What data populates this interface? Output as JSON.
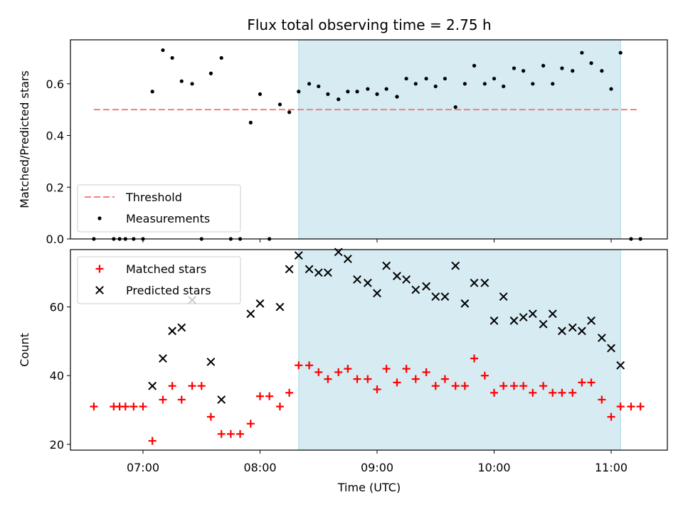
{
  "chart_data": {
    "title": "Flux total observing time = 2.75 h",
    "xlabel": "Time (UTC)",
    "xlim": [
      6.38,
      11.48
    ],
    "x_ticks": [
      {
        "v": 7,
        "label": "07:00"
      },
      {
        "v": 8,
        "label": "08:00"
      },
      {
        "v": 9,
        "label": "09:00"
      },
      {
        "v": 10,
        "label": "10:00"
      },
      {
        "v": 11,
        "label": "11:00"
      }
    ],
    "highlight_span": {
      "x0": 8.33,
      "x1": 11.08,
      "color": "#add8e6"
    },
    "panels": [
      {
        "type": "scatter",
        "ylabel": "Matched/Predicted stars",
        "ylim": [
          0,
          0.77
        ],
        "y_ticks": [
          {
            "v": 0.0,
            "label": "0.0"
          },
          {
            "v": 0.2,
            "label": "0.2"
          },
          {
            "v": 0.4,
            "label": "0.4"
          },
          {
            "v": 0.6,
            "label": "0.6"
          }
        ],
        "legend": {
          "position": "lower-left",
          "entries": [
            "Threshold",
            "Measurements"
          ]
        },
        "threshold": {
          "name": "Threshold",
          "y": 0.5,
          "x0": 6.58,
          "x1": 11.22,
          "color": "#f08080"
        },
        "series": [
          {
            "name": "Measurements",
            "marker": "dot",
            "color": "#000000",
            "x": [
              6.58,
              6.75,
              6.8,
              6.85,
              6.92,
              7.0,
              7.08,
              7.17,
              7.25,
              7.33,
              7.42,
              7.5,
              7.58,
              7.67,
              7.75,
              7.83,
              7.92,
              8.0,
              8.08,
              8.17,
              8.25,
              8.33,
              8.42,
              8.5,
              8.58,
              8.67,
              8.75,
              8.83,
              8.92,
              9.0,
              9.08,
              9.17,
              9.25,
              9.33,
              9.42,
              9.5,
              9.58,
              9.67,
              9.75,
              9.83,
              9.92,
              10.0,
              10.08,
              10.17,
              10.25,
              10.33,
              10.42,
              10.5,
              10.58,
              10.67,
              10.75,
              10.83,
              10.92,
              11.0,
              11.08,
              11.17,
              11.25
            ],
            "y": [
              0.0,
              0.0,
              0.0,
              0.0,
              0.0,
              0.0,
              0.57,
              0.73,
              0.7,
              0.61,
              0.6,
              0.0,
              0.64,
              0.7,
              0.0,
              0.0,
              0.45,
              0.56,
              0.0,
              0.52,
              0.49,
              0.57,
              0.6,
              0.59,
              0.56,
              0.54,
              0.57,
              0.57,
              0.58,
              0.56,
              0.58,
              0.55,
              0.62,
              0.6,
              0.62,
              0.59,
              0.62,
              0.51,
              0.6,
              0.67,
              0.6,
              0.62,
              0.59,
              0.66,
              0.65,
              0.6,
              0.67,
              0.6,
              0.66,
              0.65,
              0.72,
              0.68,
              0.65,
              0.58,
              0.72,
              0.0,
              0.0
            ]
          }
        ]
      },
      {
        "type": "scatter",
        "ylabel": "Count",
        "ylim": [
          18.3,
          76.7
        ],
        "y_ticks": [
          {
            "v": 20,
            "label": "20"
          },
          {
            "v": 40,
            "label": "40"
          },
          {
            "v": 60,
            "label": "60"
          }
        ],
        "legend": {
          "position": "upper-left",
          "entries": [
            "Matched stars",
            "Predicted stars"
          ]
        },
        "series": [
          {
            "name": "Matched stars",
            "marker": "plus",
            "color": "#ff0000",
            "x": [
              6.58,
              6.75,
              6.8,
              6.85,
              6.92,
              7.0,
              7.08,
              7.17,
              7.25,
              7.33,
              7.42,
              7.5,
              7.58,
              7.67,
              7.75,
              7.83,
              7.92,
              8.0,
              8.08,
              8.17,
              8.25,
              8.33,
              8.42,
              8.5,
              8.58,
              8.67,
              8.75,
              8.83,
              8.92,
              9.0,
              9.08,
              9.17,
              9.25,
              9.33,
              9.42,
              9.5,
              9.58,
              9.67,
              9.75,
              9.83,
              9.92,
              10.0,
              10.08,
              10.17,
              10.25,
              10.33,
              10.42,
              10.5,
              10.58,
              10.67,
              10.75,
              10.83,
              10.92,
              11.0,
              11.08,
              11.17,
              11.25
            ],
            "y": [
              31,
              31,
              31,
              31,
              31,
              31,
              21,
              33,
              37,
              33,
              37,
              37,
              28,
              23,
              23,
              23,
              26,
              34,
              34,
              31,
              35,
              43,
              43,
              41,
              39,
              41,
              42,
              39,
              39,
              36,
              42,
              38,
              42,
              39,
              41,
              37,
              39,
              37,
              37,
              45,
              40,
              35,
              37,
              37,
              37,
              35,
              37,
              35,
              35,
              35,
              38,
              38,
              33,
              28,
              31,
              31,
              31
            ]
          },
          {
            "name": "Predicted stars",
            "marker": "x",
            "color": "#000000",
            "x": [
              7.08,
              7.17,
              7.25,
              7.33,
              7.42,
              7.58,
              7.67,
              7.92,
              8.0,
              8.17,
              8.25,
              8.33,
              8.42,
              8.5,
              8.58,
              8.67,
              8.75,
              8.83,
              8.92,
              9.0,
              9.08,
              9.17,
              9.25,
              9.33,
              9.42,
              9.5,
              9.58,
              9.67,
              9.75,
              9.83,
              9.92,
              10.0,
              10.08,
              10.17,
              10.25,
              10.33,
              10.42,
              10.5,
              10.58,
              10.67,
              10.75,
              10.83,
              10.92,
              11.0,
              11.08
            ],
            "y": [
              37,
              45,
              53,
              54,
              62,
              44,
              33,
              58,
              61,
              60,
              71,
              75,
              71,
              70,
              70,
              76,
              74,
              68,
              67,
              64,
              72,
              69,
              68,
              65,
              66,
              63,
              63,
              72,
              61,
              67,
              67,
              56,
              63,
              56,
              57,
              58,
              55,
              58,
              53,
              54,
              53,
              56,
              51,
              48,
              43
            ]
          }
        ]
      }
    ]
  }
}
